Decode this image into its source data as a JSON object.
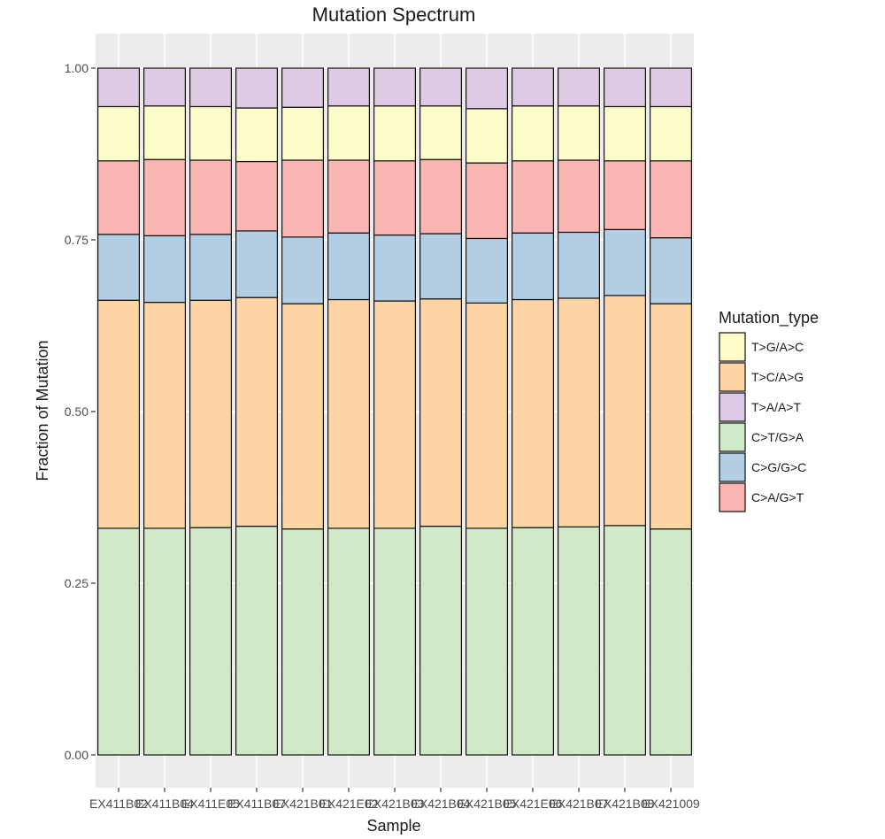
{
  "chart_data": {
    "type": "bar",
    "stacked": true,
    "title": "Mutation Spectrum",
    "xlabel": "Sample",
    "ylabel": "Fraction of Mutation",
    "ylim": [
      0,
      1
    ],
    "yticks": [
      "0.00",
      "0.25",
      "0.50",
      "0.75",
      "1.00"
    ],
    "grid": true,
    "legend_position": "right",
    "legend_title": "Mutation_type",
    "categories": [
      "EX411B02",
      "EX411B04",
      "EX411E05",
      "EX411B07",
      "EX421B01",
      "EX421E02",
      "EX421B03",
      "EX421B04",
      "EX421B05",
      "EX421E06",
      "EX421B07",
      "EX421B08",
      "EX421009"
    ],
    "category_labels": [
      "EX411B02",
      "EX411B04",
      "EX411E05",
      "EX411B07",
      "EX421B01",
      "EX421E02",
      "EX421B03",
      "EX421B04",
      "EX421B05",
      "EX421E06",
      "EX421B07",
      "EX421B08",
      "EX421009"
    ],
    "stack_order": [
      "C>T/G>A",
      "T>C/A>G",
      "C>G/G>C",
      "C>A/G>T",
      "T>G/A>C",
      "T>A/A>T"
    ],
    "series": [
      {
        "name": "C>T/G>A",
        "color": "#cfe9c9",
        "values": [
          0.33,
          0.33,
          0.331,
          0.333,
          0.329,
          0.33,
          0.33,
          0.333,
          0.33,
          0.331,
          0.332,
          0.334,
          0.329
        ]
      },
      {
        "name": "T>C/A>G",
        "color": "#fdd5a4",
        "values": [
          0.332,
          0.329,
          0.331,
          0.333,
          0.328,
          0.333,
          0.331,
          0.331,
          0.328,
          0.332,
          0.333,
          0.335,
          0.328
        ]
      },
      {
        "name": "C>G/G>C",
        "color": "#b3cde3",
        "values": [
          0.096,
          0.097,
          0.096,
          0.097,
          0.097,
          0.097,
          0.096,
          0.095,
          0.094,
          0.097,
          0.096,
          0.096,
          0.096
        ]
      },
      {
        "name": "C>A/G>T",
        "color": "#f8b5b1",
        "values": [
          0.107,
          0.111,
          0.108,
          0.101,
          0.112,
          0.106,
          0.108,
          0.108,
          0.11,
          0.105,
          0.105,
          0.1,
          0.112
        ]
      },
      {
        "name": "T>G/A>C",
        "color": "#fdfdc9",
        "values": [
          0.079,
          0.078,
          0.078,
          0.078,
          0.077,
          0.079,
          0.08,
          0.078,
          0.079,
          0.08,
          0.079,
          0.079,
          0.079
        ]
      },
      {
        "name": "T>A/A>T",
        "color": "#ddc9e3",
        "values": [
          0.056,
          0.055,
          0.056,
          0.058,
          0.057,
          0.055,
          0.055,
          0.055,
          0.059,
          0.055,
          0.055,
          0.056,
          0.056
        ]
      }
    ],
    "legend_order": [
      "T>G/A>C",
      "T>C/A>G",
      "T>A/A>T",
      "C>T/G>A",
      "C>G/G>C",
      "C>A/G>T"
    ]
  }
}
